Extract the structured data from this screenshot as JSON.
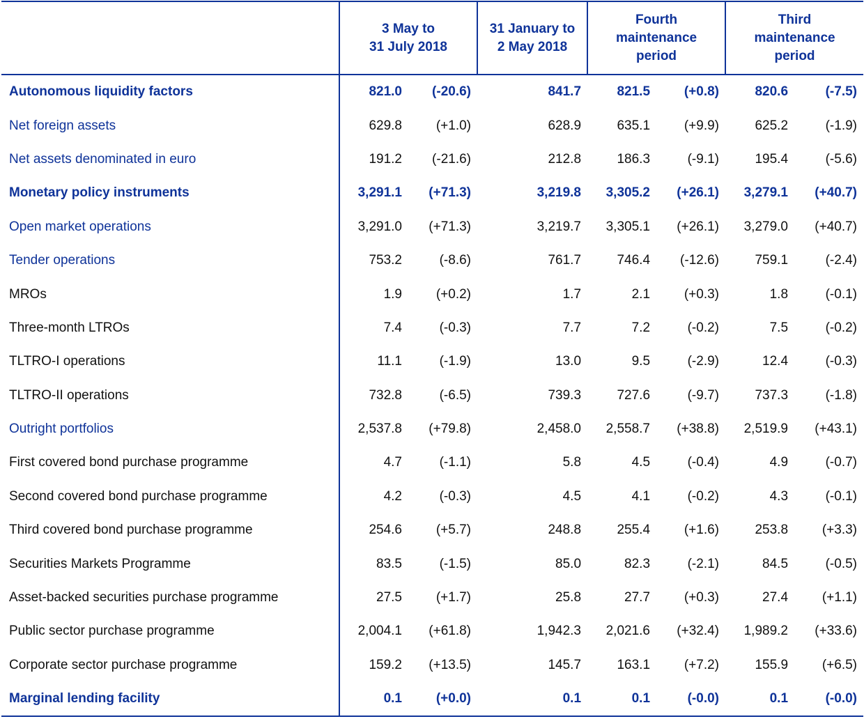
{
  "colors": {
    "accent": "#0f3399",
    "text": "#111111"
  },
  "header": {
    "columns": [
      "3 May to\n31 July 2018",
      "31 January to\n2 May 2018",
      "Fourth\nmaintenance\nperiod",
      "Third\nmaintenance\nperiod"
    ]
  },
  "rows": [
    {
      "label": "Autonomous liquidity factors",
      "level": 0,
      "values": [
        "821.0",
        "(-20.6)",
        "841.7",
        "821.5",
        "(+0.8)",
        "820.6",
        "(-7.5)"
      ]
    },
    {
      "label": "Net foreign assets",
      "level": 1,
      "values": [
        "629.8",
        "(+1.0)",
        "628.9",
        "635.1",
        "(+9.9)",
        "625.2",
        "(-1.9)"
      ]
    },
    {
      "label": "Net assets denominated in euro",
      "level": 1,
      "values": [
        "191.2",
        "(-21.6)",
        "212.8",
        "186.3",
        "(-9.1)",
        "195.4",
        "(-5.6)"
      ]
    },
    {
      "label": "Monetary policy instruments",
      "level": 0,
      "values": [
        "3,291.1",
        "(+71.3)",
        "3,219.8",
        "3,305.2",
        "(+26.1)",
        "3,279.1",
        "(+40.7)"
      ]
    },
    {
      "label": "Open market operations",
      "level": 1,
      "values": [
        "3,291.0",
        "(+71.3)",
        "3,219.7",
        "3,305.1",
        "(+26.1)",
        "3,279.0",
        "(+40.7)"
      ]
    },
    {
      "label": "Tender operations",
      "level": 1,
      "values": [
        "753.2",
        "(-8.6)",
        "761.7",
        "746.4",
        "(-12.6)",
        "759.1",
        "(-2.4)"
      ]
    },
    {
      "label": "MROs",
      "level": 2,
      "values": [
        "1.9",
        "(+0.2)",
        "1.7",
        "2.1",
        "(+0.3)",
        "1.8",
        "(-0.1)"
      ]
    },
    {
      "label": "Three-month LTROs",
      "level": 2,
      "values": [
        "7.4",
        "(-0.3)",
        "7.7",
        "7.2",
        "(-0.2)",
        "7.5",
        "(-0.2)"
      ]
    },
    {
      "label": "TLTRO-I operations",
      "level": 2,
      "values": [
        "11.1",
        "(-1.9)",
        "13.0",
        "9.5",
        "(-2.9)",
        "12.4",
        "(-0.3)"
      ]
    },
    {
      "label": "TLTRO-II operations",
      "level": 2,
      "values": [
        "732.8",
        "(-6.5)",
        "739.3",
        "727.6",
        "(-9.7)",
        "737.3",
        "(-1.8)"
      ]
    },
    {
      "label": "Outright portfolios",
      "level": 1,
      "values": [
        "2,537.8",
        "(+79.8)",
        "2,458.0",
        "2,558.7",
        "(+38.8)",
        "2,519.9",
        "(+43.1)"
      ]
    },
    {
      "label": "First covered bond purchase programme",
      "level": 2,
      "values": [
        "4.7",
        "(-1.1)",
        "5.8",
        "4.5",
        "(-0.4)",
        "4.9",
        "(-0.7)"
      ]
    },
    {
      "label": "Second covered bond purchase programme",
      "level": 2,
      "values": [
        "4.2",
        "(-0.3)",
        "4.5",
        "4.1",
        "(-0.2)",
        "4.3",
        "(-0.1)"
      ]
    },
    {
      "label": "Third covered bond purchase programme",
      "level": 2,
      "values": [
        "254.6",
        "(+5.7)",
        "248.8",
        "255.4",
        "(+1.6)",
        "253.8",
        "(+3.3)"
      ]
    },
    {
      "label": "Securities Markets Programme",
      "level": 2,
      "values": [
        "83.5",
        "(-1.5)",
        "85.0",
        "82.3",
        "(-2.1)",
        "84.5",
        "(-0.5)"
      ]
    },
    {
      "label": "Asset-backed securities purchase programme",
      "level": 2,
      "values": [
        "27.5",
        "(+1.7)",
        "25.8",
        "27.7",
        "(+0.3)",
        "27.4",
        "(+1.1)"
      ]
    },
    {
      "label": "Public sector purchase programme",
      "level": 2,
      "values": [
        "2,004.1",
        "(+61.8)",
        "1,942.3",
        "2,021.6",
        "(+32.4)",
        "1,989.2",
        "(+33.6)"
      ]
    },
    {
      "label": "Corporate sector purchase programme",
      "level": 2,
      "values": [
        "159.2",
        "(+13.5)",
        "145.7",
        "163.1",
        "(+7.2)",
        "155.9",
        "(+6.5)"
      ]
    },
    {
      "label": "Marginal lending facility",
      "level": 0,
      "values": [
        "0.1",
        "(+0.0)",
        "0.1",
        "0.1",
        "(-0.0)",
        "0.1",
        "(-0.0)"
      ]
    }
  ]
}
